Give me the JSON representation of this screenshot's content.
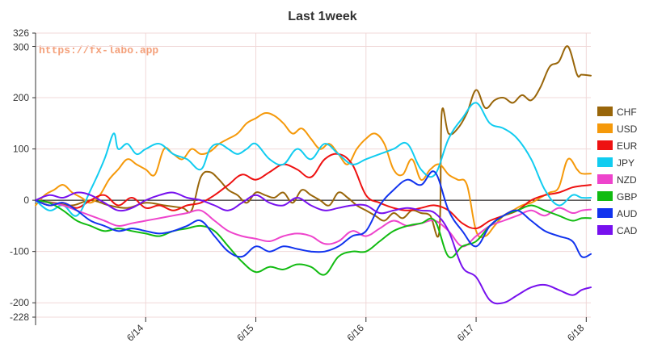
{
  "watermark": "https://fx-labo.app",
  "colors": {
    "grid": "#f0d8d8",
    "axis": "#333333",
    "zero_line": "#000000",
    "watermark": "#f4a07a"
  },
  "chart_data": {
    "type": "line",
    "title": "Last 1week",
    "xlabel": "",
    "ylabel": "",
    "ylim": [
      -228,
      326
    ],
    "y_ticks": [
      326,
      300,
      200,
      100,
      0,
      -100,
      -200,
      -228
    ],
    "x_ticks": [
      {
        "label": "6/14",
        "x": 24
      },
      {
        "label": "6/15",
        "x": 48
      },
      {
        "label": "6/16",
        "x": 72
      },
      {
        "label": "6/17",
        "x": 96
      },
      {
        "label": "6/18",
        "x": 120
      }
    ],
    "xlim": [
      0,
      121
    ],
    "x_unit": "hours from chart start",
    "grid": true,
    "legend_position": "right",
    "series": [
      {
        "name": "CHF",
        "color": "#99660a",
        "x": [
          0,
          4,
          8,
          12,
          16,
          20,
          24,
          28,
          32,
          34,
          36,
          38,
          40,
          42,
          44,
          46,
          48,
          50,
          52,
          54,
          56,
          58,
          60,
          62,
          64,
          66,
          68,
          70,
          72,
          74,
          76,
          78,
          80,
          82,
          84,
          86,
          88,
          88.5,
          90,
          92,
          94,
          96,
          98,
          100,
          102,
          104,
          106,
          108,
          110,
          112,
          114,
          116,
          118,
          119,
          121
        ],
        "y": [
          0,
          -5,
          -10,
          0,
          -10,
          -15,
          -5,
          -10,
          -15,
          -20,
          45,
          55,
          40,
          20,
          10,
          -5,
          15,
          10,
          5,
          15,
          -5,
          20,
          10,
          0,
          -10,
          15,
          5,
          -10,
          -20,
          -30,
          -40,
          -25,
          -35,
          -20,
          -25,
          -30,
          -60,
          170,
          130,
          140,
          170,
          215,
          180,
          195,
          200,
          190,
          205,
          195,
          220,
          260,
          270,
          300,
          245,
          245,
          243
        ]
      },
      {
        "name": "USD",
        "color": "#f5990a",
        "x": [
          0,
          2,
          4,
          6,
          8,
          10,
          12,
          14,
          16,
          18,
          20,
          22,
          24,
          26,
          28,
          30,
          32,
          34,
          36,
          38,
          40,
          42,
          44,
          46,
          48,
          50,
          52,
          54,
          56,
          58,
          60,
          62,
          64,
          66,
          68,
          70,
          72,
          74,
          76,
          78,
          80,
          82,
          84,
          86,
          88,
          90,
          92,
          94,
          96,
          98,
          100,
          102,
          104,
          106,
          108,
          110,
          112,
          114,
          116,
          118,
          119,
          121
        ],
        "y": [
          -10,
          10,
          20,
          30,
          15,
          5,
          -5,
          10,
          40,
          60,
          80,
          70,
          60,
          50,
          100,
          90,
          80,
          100,
          90,
          95,
          110,
          120,
          130,
          150,
          160,
          170,
          165,
          150,
          130,
          140,
          120,
          100,
          110,
          90,
          70,
          100,
          120,
          130,
          110,
          60,
          50,
          80,
          40,
          60,
          70,
          50,
          40,
          30,
          -60,
          -70,
          -50,
          -30,
          -20,
          -10,
          -5,
          5,
          15,
          25,
          80,
          60,
          52,
          52
        ]
      },
      {
        "name": "EUR",
        "color": "#ee1111",
        "x": [
          0,
          3,
          6,
          9,
          12,
          15,
          18,
          21,
          24,
          27,
          30,
          33,
          36,
          39,
          42,
          45,
          48,
          51,
          54,
          57,
          60,
          63,
          66,
          69,
          72,
          75,
          78,
          81,
          84,
          87,
          90,
          93,
          96,
          99,
          102,
          105,
          108,
          111,
          114,
          117,
          119,
          121
        ],
        "y": [
          0,
          -10,
          -5,
          -15,
          0,
          10,
          -10,
          5,
          -15,
          -10,
          -20,
          -10,
          -5,
          10,
          30,
          50,
          40,
          55,
          70,
          60,
          45,
          80,
          90,
          70,
          10,
          -5,
          -15,
          -20,
          -15,
          -10,
          -20,
          -45,
          -55,
          -40,
          -30,
          -20,
          0,
          10,
          15,
          25,
          28,
          30
        ]
      },
      {
        "name": "JPY",
        "color": "#11ccf0",
        "x": [
          0,
          3,
          6,
          9,
          12,
          15,
          17,
          18,
          20,
          22,
          24,
          27,
          30,
          33,
          36,
          38,
          40,
          42,
          44,
          46,
          48,
          51,
          54,
          57,
          60,
          63,
          66,
          69,
          72,
          75,
          78,
          81,
          84,
          87,
          90,
          93,
          96,
          99,
          102,
          105,
          108,
          111,
          114,
          117,
          119,
          121
        ],
        "y": [
          0,
          -20,
          -10,
          -30,
          20,
          80,
          130,
          100,
          110,
          90,
          100,
          110,
          90,
          80,
          60,
          100,
          110,
          100,
          90,
          100,
          110,
          80,
          70,
          100,
          80,
          110,
          90,
          70,
          80,
          90,
          100,
          110,
          60,
          50,
          120,
          160,
          190,
          150,
          140,
          120,
          80,
          20,
          -10,
          10,
          5,
          5
        ]
      },
      {
        "name": "NZD",
        "color": "#ee44cc",
        "x": [
          0,
          3,
          6,
          9,
          12,
          15,
          18,
          21,
          24,
          27,
          30,
          33,
          36,
          39,
          42,
          45,
          48,
          51,
          54,
          57,
          60,
          63,
          66,
          69,
          72,
          75,
          78,
          81,
          84,
          87,
          90,
          93,
          96,
          99,
          102,
          105,
          108,
          111,
          114,
          117,
          119,
          121
        ],
        "y": [
          0,
          -5,
          -10,
          -20,
          -30,
          -40,
          -50,
          -45,
          -40,
          -35,
          -30,
          -25,
          -20,
          -40,
          -60,
          -70,
          -75,
          -80,
          -70,
          -65,
          -70,
          -85,
          -80,
          -60,
          -70,
          -55,
          -40,
          -50,
          -45,
          -40,
          -60,
          -90,
          -70,
          -50,
          -40,
          -30,
          -20,
          -30,
          -15,
          -25,
          -20,
          -18
        ]
      },
      {
        "name": "GBP",
        "color": "#11bb11",
        "x": [
          0,
          3,
          6,
          9,
          12,
          15,
          18,
          21,
          24,
          27,
          30,
          33,
          36,
          39,
          42,
          45,
          48,
          51,
          54,
          57,
          60,
          63,
          66,
          69,
          72,
          75,
          78,
          81,
          84,
          87,
          90,
          93,
          96,
          99,
          102,
          105,
          108,
          111,
          114,
          117,
          119,
          121
        ],
        "y": [
          0,
          -5,
          -20,
          -40,
          -50,
          -60,
          -55,
          -60,
          -65,
          -70,
          -60,
          -55,
          -50,
          -60,
          -90,
          -120,
          -140,
          -130,
          -135,
          -125,
          -130,
          -145,
          -110,
          -100,
          -100,
          -80,
          -60,
          -50,
          -45,
          -40,
          -110,
          -90,
          -80,
          -50,
          -30,
          -20,
          -10,
          -20,
          -30,
          -40,
          -35,
          -35
        ]
      },
      {
        "name": "AUD",
        "color": "#1133ee",
        "x": [
          0,
          3,
          6,
          9,
          12,
          15,
          18,
          21,
          24,
          27,
          30,
          33,
          36,
          39,
          42,
          45,
          48,
          51,
          54,
          57,
          60,
          63,
          66,
          69,
          72,
          75,
          78,
          81,
          84,
          87,
          90,
          93,
          96,
          99,
          102,
          105,
          108,
          111,
          114,
          117,
          119,
          121
        ],
        "y": [
          0,
          -10,
          -5,
          -20,
          -40,
          -50,
          -60,
          -55,
          -60,
          -65,
          -60,
          -50,
          -40,
          -70,
          -100,
          -110,
          -90,
          -100,
          -90,
          -95,
          -100,
          -100,
          -90,
          -70,
          -60,
          -10,
          20,
          40,
          30,
          55,
          -20,
          -60,
          -90,
          -50,
          -30,
          -20,
          -40,
          -60,
          -70,
          -80,
          -110,
          -105
        ]
      },
      {
        "name": "CAD",
        "color": "#7711ee",
        "x": [
          0,
          3,
          6,
          9,
          12,
          15,
          18,
          21,
          24,
          27,
          30,
          33,
          36,
          39,
          42,
          45,
          48,
          51,
          54,
          57,
          60,
          63,
          66,
          69,
          72,
          75,
          78,
          81,
          84,
          87,
          90,
          93,
          96,
          99,
          102,
          105,
          108,
          111,
          114,
          117,
          119,
          121
        ],
        "y": [
          0,
          10,
          5,
          15,
          10,
          -5,
          -20,
          -15,
          0,
          10,
          15,
          5,
          0,
          -10,
          -20,
          -5,
          10,
          -5,
          -10,
          5,
          -10,
          -20,
          -15,
          -10,
          -10,
          -25,
          -20,
          -15,
          -20,
          -25,
          -60,
          -130,
          -150,
          -195,
          -200,
          -185,
          -170,
          -165,
          -175,
          -185,
          -175,
          -170
        ]
      }
    ]
  }
}
